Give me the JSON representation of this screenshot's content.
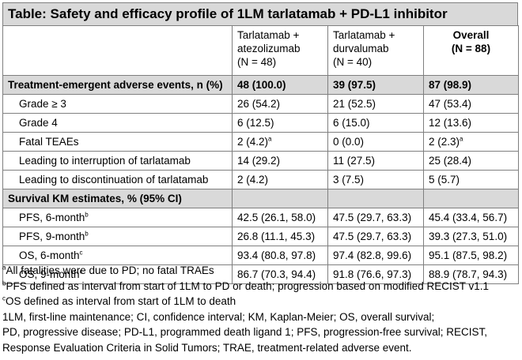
{
  "title": "Table: Safety and efficacy profile of 1LM tarlatamab + PD-L1 inhibitor",
  "columns": [
    {
      "line1": "Tarlatamab +",
      "line2": "atezolizumab",
      "line3": "(N = 48)"
    },
    {
      "line1": "Tarlatamab +",
      "line2": "durvalumab",
      "line3": "(N = 40)"
    },
    {
      "line1": "Overall",
      "line2": "(N = 88)"
    }
  ],
  "sections": [
    {
      "label": "Treatment-emergent adverse events, n (%)",
      "values": [
        "48 (100.0)",
        "39 (97.5)",
        "87 (98.9)"
      ],
      "rows": [
        {
          "label": "Grade ≥ 3",
          "sup": "",
          "values": [
            "26 (54.2)",
            "21 (52.5)",
            "47 (53.4)"
          ],
          "value_sups": [
            "",
            "",
            ""
          ]
        },
        {
          "label": "Grade 4",
          "sup": "",
          "values": [
            "6 (12.5)",
            "6 (15.0)",
            "12 (13.6)"
          ],
          "value_sups": [
            "",
            "",
            ""
          ]
        },
        {
          "label": "Fatal TEAEs",
          "sup": "",
          "values": [
            "2 (4.2)",
            "0 (0.0)",
            "2 (2.3)"
          ],
          "value_sups": [
            "a",
            "",
            "a"
          ]
        },
        {
          "label": "Leading to interruption of tarlatamab",
          "sup": "",
          "values": [
            "14 (29.2)",
            "11 (27.5)",
            "25 (28.4)"
          ],
          "value_sups": [
            "",
            "",
            ""
          ]
        },
        {
          "label": "Leading to discontinuation of tarlatamab",
          "sup": "",
          "values": [
            "2 (4.2)",
            "3 (7.5)",
            "5 (5.7)"
          ],
          "value_sups": [
            "",
            "",
            ""
          ]
        }
      ]
    },
    {
      "label": "Survival KM estimates, % (95% CI)",
      "values": [
        "",
        "",
        ""
      ],
      "rows": [
        {
          "label": "PFS, 6-month",
          "sup": "b",
          "values": [
            "42.5 (26.1, 58.0)",
            "47.5 (29.7, 63.3)",
            "45.4 (33.4, 56.7)"
          ],
          "value_sups": [
            "",
            "",
            ""
          ]
        },
        {
          "label": "PFS, 9-month",
          "sup": "b",
          "values": [
            "26.8 (11.1, 45.3)",
            "47.5 (29.7, 63.3)",
            "39.3 (27.3, 51.0)"
          ],
          "value_sups": [
            "",
            "",
            ""
          ]
        },
        {
          "label": "OS, 6-month",
          "sup": "c",
          "values": [
            "93.4 (80.8, 97.8)",
            "97.4 (82.8, 99.6)",
            "95.1 (87.5, 98.2)"
          ],
          "value_sups": [
            "",
            "",
            ""
          ]
        },
        {
          "label": "OS, 9-month",
          "sup": "c",
          "values": [
            "86.7 (70.3, 94.4)",
            "91.8 (76.6, 97.3)",
            "88.9 (78.7, 94.3)"
          ],
          "value_sups": [
            "",
            "",
            ""
          ]
        }
      ]
    }
  ],
  "footnotes": [
    {
      "sup": "a",
      "text": "All fatalities were due to PD; no fatal TRAEs"
    },
    {
      "sup": "b",
      "text": "PFS defined as interval from start of 1LM to PD or death; progression based on modified RECIST v1.1"
    },
    {
      "sup": "c",
      "text": "OS defined as interval from start of 1LM to death"
    }
  ],
  "abbreviations": [
    "1LM, first-line maintenance; CI, confidence interval; KM, Kaplan-Meier; OS, overall survival;",
    "PD, progressive disease; PD-L1, programmed death ligand 1; PFS, progression-free survival; RECIST,",
    "Response Evaluation Criteria in Solid Tumors; TRAE, treatment-related adverse event."
  ]
}
